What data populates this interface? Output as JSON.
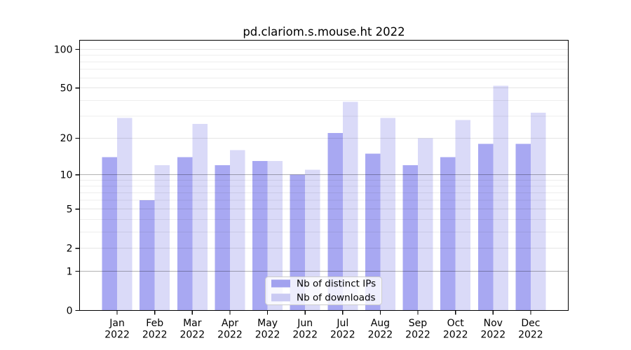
{
  "chart_data": {
    "type": "bar",
    "title": "pd.clariom.s.mouse.ht 2022",
    "categories": [
      "Jan 2022",
      "Feb 2022",
      "Mar 2022",
      "Apr 2022",
      "May 2022",
      "Jun 2022",
      "Jul 2022",
      "Aug 2022",
      "Sep 2022",
      "Oct 2022",
      "Nov 2022",
      "Dec 2022"
    ],
    "series": [
      {
        "name": "Nb of distinct IPs",
        "color": "#a2a2ef",
        "bar_fill": "#a8a8f2",
        "values": [
          14,
          6,
          14,
          12,
          13,
          10,
          22,
          15,
          12,
          14,
          18,
          18
        ]
      },
      {
        "name": "Nb of downloads",
        "color": "#cacaf3",
        "bar_fill": "#dadaf8",
        "values": [
          29,
          12,
          26,
          16,
          13,
          11,
          39,
          29,
          20,
          28,
          52,
          32
        ]
      }
    ],
    "xlabel": "",
    "ylabel": "",
    "yscale": "log1p",
    "ylim": [
      0,
      115
    ],
    "yticks": [
      0,
      1,
      2,
      5,
      10,
      20,
      50,
      100
    ],
    "yticks_minor": [
      3,
      4,
      6,
      7,
      8,
      9,
      30,
      40,
      60,
      70,
      80,
      90
    ],
    "grid": "on",
    "legend_position": "bottom-center",
    "colors": {
      "axis": "#000000",
      "grid_major_strong": "rgba(0,0,0,0.30)",
      "grid_major": "rgba(0,0,0,0.10)",
      "grid_minor": "rgba(0,0,0,0.07)",
      "legend_bg": "rgba(255,255,255,0.8)",
      "legend_border": "#cccccc",
      "background": "#ffffff"
    }
  }
}
